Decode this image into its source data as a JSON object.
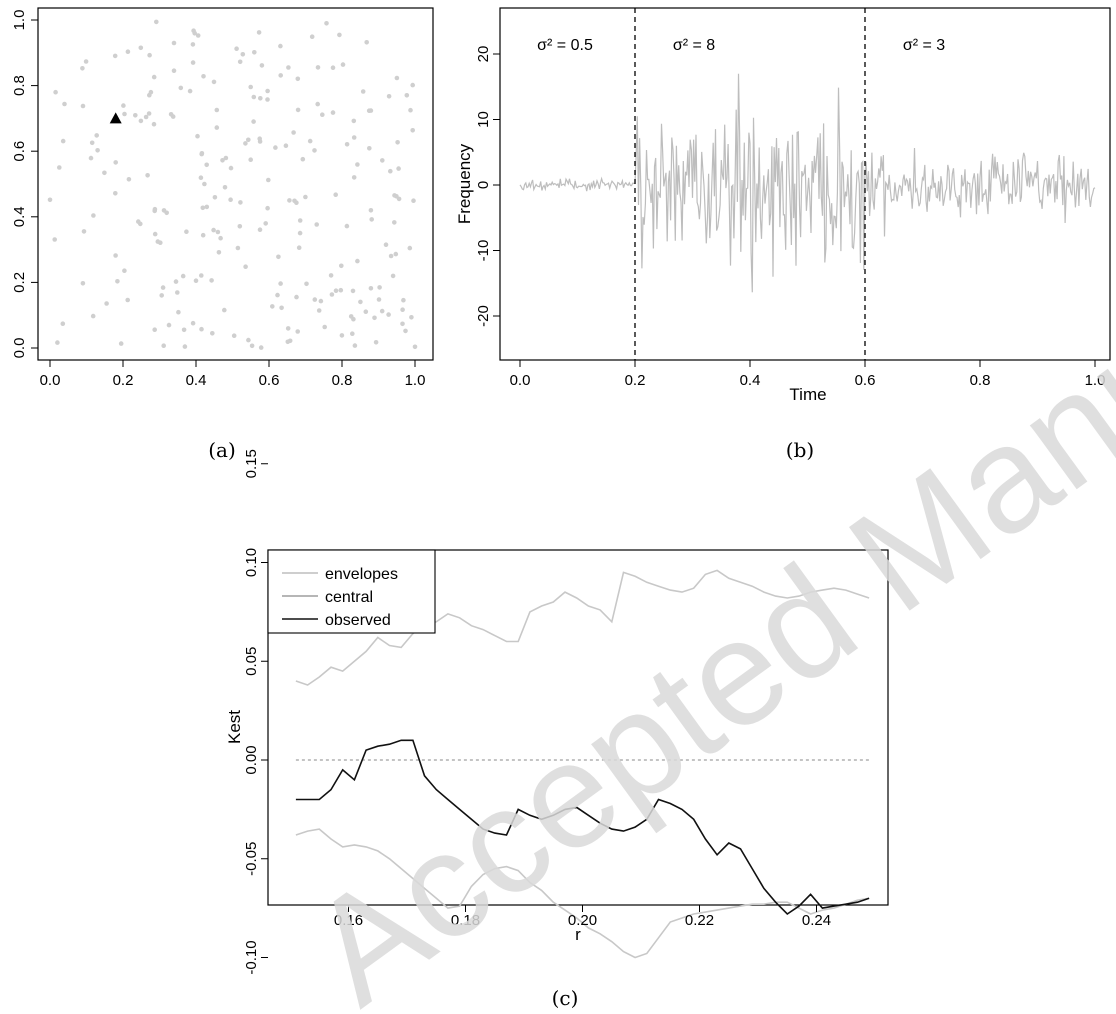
{
  "captions": {
    "a": "(a)",
    "b": "(b)",
    "c": "(c)"
  },
  "watermark": {
    "text": "Accepted Manuscript",
    "color": "#cfcfcf"
  },
  "colors": {
    "points": "#cfcfcf",
    "series": "#bdbdbd",
    "observed": "#111111",
    "envelope": "#c8c8c8",
    "axis": "#000000"
  },
  "chart_data": [
    {
      "id": "a",
      "type": "scatter",
      "title": "",
      "xlabel": "",
      "ylabel": "",
      "xlim": [
        0,
        1
      ],
      "ylim": [
        0,
        1
      ],
      "xticks": [
        "0.0",
        "0.2",
        "0.4",
        "0.6",
        "0.8",
        "1.0"
      ],
      "yticks": [
        "0.0",
        "0.2",
        "0.4",
        "0.6",
        "0.8",
        "1.0"
      ],
      "n_points": 240,
      "highlight": {
        "marker": "triangle",
        "x": 0.18,
        "y": 0.7
      }
    },
    {
      "id": "b",
      "type": "line",
      "title": "",
      "xlabel": "Time",
      "ylabel": "Frequency",
      "xlim": [
        0,
        1
      ],
      "ylim": [
        -25,
        25
      ],
      "xticks": [
        "0.0",
        "0.2",
        "0.4",
        "0.6",
        "0.8",
        "1.0"
      ],
      "yticks": [
        "-20",
        "-10",
        "0",
        "10",
        "20"
      ],
      "change_points": [
        0.2,
        0.6
      ],
      "segments": [
        {
          "label": "σ² = 0.5",
          "variance": 0.5,
          "from": 0.0,
          "to": 0.2
        },
        {
          "label": "σ² = 8",
          "variance": 8,
          "from": 0.2,
          "to": 0.6
        },
        {
          "label": "σ² = 3",
          "variance": 3,
          "from": 0.6,
          "to": 1.0
        }
      ]
    },
    {
      "id": "c",
      "type": "line",
      "title": "",
      "xlabel": "r",
      "ylabel": "Kest",
      "xlim": [
        0.15,
        0.25
      ],
      "ylim": [
        -0.1,
        0.15
      ],
      "xticks": [
        "0.16",
        "0.18",
        "0.20",
        "0.22",
        "0.24"
      ],
      "yticks": [
        "-0.10",
        "-0.05",
        "0.00",
        "0.05",
        "0.10",
        "0.15"
      ],
      "legend": {
        "position": "top-left",
        "entries": [
          "envelopes",
          "central",
          "observed"
        ]
      },
      "x": [
        0.151,
        0.153,
        0.155,
        0.157,
        0.159,
        0.161,
        0.163,
        0.165,
        0.167,
        0.169,
        0.171,
        0.173,
        0.175,
        0.177,
        0.179,
        0.181,
        0.183,
        0.185,
        0.187,
        0.189,
        0.191,
        0.193,
        0.195,
        0.197,
        0.199,
        0.201,
        0.203,
        0.205,
        0.207,
        0.209,
        0.211,
        0.213,
        0.215,
        0.217,
        0.219,
        0.221,
        0.223,
        0.225,
        0.227,
        0.229,
        0.231,
        0.233,
        0.235,
        0.237,
        0.239,
        0.241,
        0.243,
        0.245,
        0.247,
        0.249
      ],
      "series": [
        {
          "name": "envelopes",
          "values": [
            0.04,
            0.038,
            0.042,
            0.047,
            0.045,
            0.05,
            0.055,
            0.062,
            0.058,
            0.057,
            0.064,
            0.068,
            0.07,
            0.074,
            0.072,
            0.068,
            0.066,
            0.063,
            0.06,
            0.06,
            0.075,
            0.078,
            0.08,
            0.085,
            0.082,
            0.078,
            0.076,
            0.07,
            0.095,
            0.093,
            0.09,
            0.088,
            0.086,
            0.085,
            0.087,
            0.094,
            0.096,
            0.092,
            0.09,
            0.088,
            0.085,
            0.083,
            0.082,
            0.083,
            0.085,
            0.086,
            0.087,
            0.086,
            0.084,
            0.082
          ]
        },
        {
          "name": "envelopes",
          "values": [
            -0.038,
            -0.036,
            -0.035,
            -0.04,
            -0.044,
            -0.043,
            -0.044,
            -0.046,
            -0.05,
            -0.055,
            -0.06,
            -0.065,
            -0.07,
            -0.075,
            -0.074,
            -0.064,
            -0.058,
            -0.055,
            -0.054,
            -0.056,
            -0.062,
            -0.066,
            -0.072,
            -0.076,
            -0.08,
            -0.085,
            -0.088,
            -0.092,
            -0.097,
            -0.1,
            -0.098,
            -0.09,
            -0.082,
            -0.08,
            -0.078,
            -0.077,
            -0.076,
            -0.075,
            -0.074,
            -0.073,
            -0.073,
            -0.072,
            -0.072,
            -0.075,
            -0.078,
            -0.076,
            -0.075,
            -0.073,
            -0.071,
            -0.07
          ]
        },
        {
          "name": "central",
          "values": [
            0,
            0,
            0,
            0,
            0,
            0,
            0,
            0,
            0,
            0,
            0,
            0,
            0,
            0,
            0,
            0,
            0,
            0,
            0,
            0,
            0,
            0,
            0,
            0,
            0,
            0,
            0,
            0,
            0,
            0,
            0,
            0,
            0,
            0,
            0,
            0,
            0,
            0,
            0,
            0,
            0,
            0,
            0,
            0,
            0,
            0,
            0,
            0,
            0,
            0
          ]
        },
        {
          "name": "observed",
          "values": [
            -0.02,
            -0.02,
            -0.02,
            -0.015,
            -0.005,
            -0.01,
            0.005,
            0.007,
            0.008,
            0.01,
            0.01,
            -0.008,
            -0.015,
            -0.02,
            -0.025,
            -0.03,
            -0.035,
            -0.037,
            -0.038,
            -0.025,
            -0.028,
            -0.03,
            -0.028,
            -0.025,
            -0.024,
            -0.028,
            -0.032,
            -0.035,
            -0.036,
            -0.034,
            -0.03,
            -0.02,
            -0.022,
            -0.025,
            -0.03,
            -0.04,
            -0.048,
            -0.042,
            -0.045,
            -0.055,
            -0.065,
            -0.072,
            -0.078,
            -0.074,
            -0.068,
            -0.075,
            -0.074,
            -0.073,
            -0.072,
            -0.07
          ]
        }
      ]
    }
  ]
}
